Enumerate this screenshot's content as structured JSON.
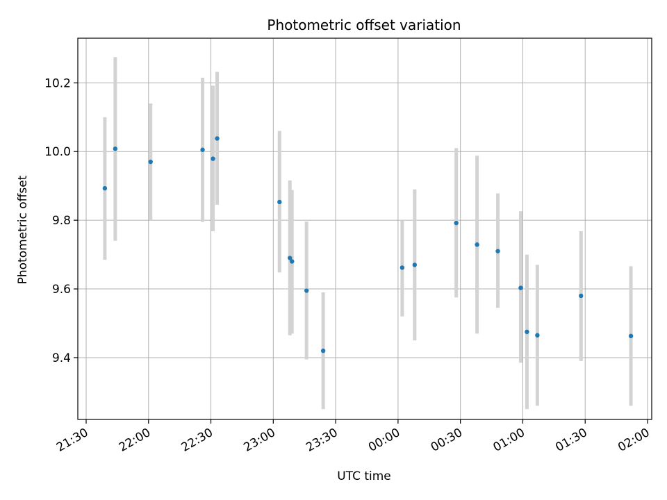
{
  "chart_data": {
    "type": "scatter",
    "title": "Photometric offset variation",
    "xlabel": "UTC time",
    "ylabel": "Photometric offset",
    "x_tick_labels": [
      "21:30",
      "22:00",
      "22:30",
      "23:00",
      "23:30",
      "00:00",
      "00:30",
      "01:00",
      "01:30",
      "02:00"
    ],
    "x_tick_minutes": [
      0,
      30,
      60,
      90,
      120,
      150,
      180,
      210,
      240,
      270
    ],
    "y_ticks": [
      9.4,
      9.6,
      9.8,
      10.0,
      10.2
    ],
    "y_tick_labels": [
      "9.4",
      "9.6",
      "9.8",
      "10.0",
      "10.2"
    ],
    "xlim_minutes": [
      -4,
      272
    ],
    "ylim": [
      9.22,
      10.33
    ],
    "grid": true,
    "colors": {
      "point": "#1f77b4",
      "errorbar": "#d3d3d3",
      "grid": "#b0b0b0"
    },
    "series": [
      {
        "x_minutes": [
          9,
          14,
          31,
          56,
          61,
          63,
          93,
          98,
          99,
          106,
          114,
          152,
          158,
          178,
          188,
          198,
          209,
          212,
          217,
          238,
          262
        ],
        "y": [
          9.893,
          10.008,
          9.97,
          10.005,
          9.979,
          10.038,
          9.853,
          9.69,
          9.68,
          9.595,
          9.42,
          9.662,
          9.67,
          9.792,
          9.729,
          9.71,
          9.603,
          9.475,
          9.465,
          9.58,
          9.463
        ],
        "y_low": [
          9.685,
          9.74,
          9.8,
          9.795,
          9.768,
          9.845,
          9.648,
          9.465,
          9.47,
          9.395,
          9.25,
          9.52,
          9.45,
          9.575,
          9.47,
          9.545,
          9.385,
          9.25,
          9.26,
          9.39,
          9.26
        ],
        "y_high": [
          10.1,
          10.275,
          10.14,
          10.215,
          10.192,
          10.232,
          10.06,
          9.916,
          9.888,
          9.796,
          9.59,
          9.8,
          9.89,
          10.01,
          9.988,
          9.878,
          9.826,
          9.7,
          9.67,
          9.768,
          9.666
        ]
      }
    ]
  }
}
